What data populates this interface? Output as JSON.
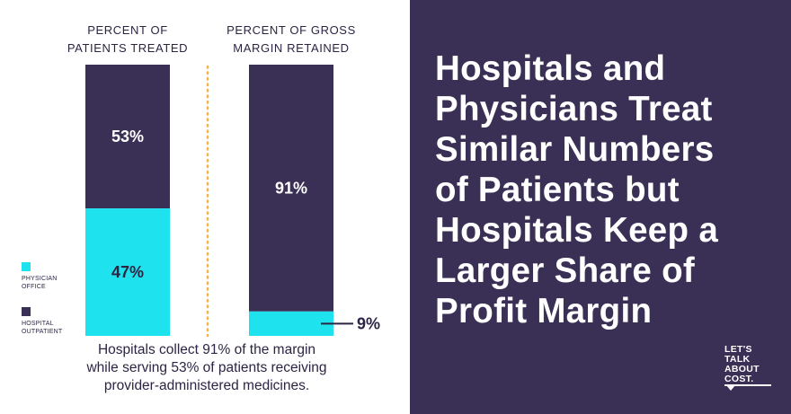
{
  "chart_data": {
    "type": "bar",
    "stacked": true,
    "percent": true,
    "categories": [
      "PERCENT OF PATIENTS TREATED",
      "PERCENT OF GROSS MARGIN RETAINED"
    ],
    "category_lines": [
      [
        "PERCENT OF",
        "PATIENTS TREATED"
      ],
      [
        "PERCENT OF GROSS",
        "MARGIN RETAINED"
      ]
    ],
    "series": [
      {
        "name": "PHYSICIAN OFFICE",
        "values": [
          47,
          9
        ],
        "labels": [
          "47%",
          "9%"
        ]
      },
      {
        "name": "HOSPITAL OUTPATIENT",
        "values": [
          53,
          91
        ],
        "labels": [
          "53%",
          "91%"
        ]
      }
    ],
    "ylim": [
      0,
      100
    ],
    "legend_position": "bottom-left",
    "colors": {
      "PHYSICIAN OFFICE": "#1ee3ee",
      "HOSPITAL OUTPATIENT": "#3a2f55",
      "divider": "#f2b544"
    }
  },
  "legend": [
    {
      "lines": [
        "PHYSICIAN",
        "OFFICE"
      ],
      "color": "#1ee3ee"
    },
    {
      "lines": [
        "HOSPITAL",
        "OUTPATIENT"
      ],
      "color": "#3a2f55"
    }
  ],
  "caption": {
    "lines": [
      "Hospitals collect 91% of the margin",
      "while serving 53% of patients receiving",
      "provider-administered medicines."
    ]
  },
  "headline": {
    "lines": [
      "Hospitals and",
      "Physicians Treat",
      "Similar Numbers",
      "of Patients but",
      "Hospitals Keep a",
      "Larger Share of",
      "Profit Margin"
    ]
  },
  "logo": {
    "lines": [
      "LET'S",
      "TALK",
      "ABOUT",
      "COST."
    ]
  },
  "colors": {
    "background_right": "#3a2f55",
    "text_dark": "#2d2443",
    "accent_cyan": "#1ee3ee"
  }
}
